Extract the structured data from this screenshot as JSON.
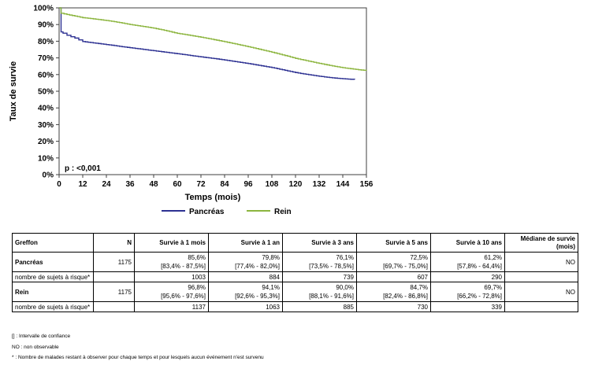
{
  "chart": {
    "ylabel": "Taux de survie",
    "xlabel": "Temps (mois)",
    "p_value": "p : <0,001",
    "ytick_labels": [
      "0%",
      "10%",
      "20%",
      "30%",
      "40%",
      "50%",
      "60%",
      "70%",
      "80%",
      "90%",
      "100%"
    ],
    "xtick_values": [
      0,
      12,
      24,
      36,
      48,
      60,
      72,
      84,
      96,
      108,
      120,
      132,
      144,
      156
    ],
    "legend": {
      "pancreas_label": "Pancréas",
      "rein_label": "Rein"
    },
    "axis_color": "#3f3f3f"
  },
  "chart_data": {
    "type": "line",
    "title": "",
    "xlabel": "Temps (mois)",
    "ylabel": "Taux de survie",
    "xlim": [
      0,
      156
    ],
    "ylim": [
      0,
      100
    ],
    "grid": false,
    "legend_position": "bottom",
    "annotation": "p : <0,001",
    "series": [
      {
        "name": "Pancréas",
        "color": "#2d3192",
        "style": "km-step",
        "points": [
          [
            0,
            100
          ],
          [
            1,
            85.6
          ],
          [
            2,
            84.8
          ],
          [
            4,
            83.6
          ],
          [
            6,
            82.7
          ],
          [
            8,
            81.9
          ],
          [
            10,
            80.8
          ],
          [
            12,
            79.8
          ],
          [
            16,
            79.2
          ],
          [
            20,
            78.6
          ],
          [
            24,
            78.0
          ],
          [
            28,
            77.4
          ],
          [
            32,
            76.7
          ],
          [
            36,
            76.1
          ],
          [
            40,
            75.5
          ],
          [
            44,
            74.9
          ],
          [
            48,
            74.3
          ],
          [
            52,
            73.7
          ],
          [
            56,
            73.1
          ],
          [
            60,
            72.5
          ],
          [
            64,
            71.9
          ],
          [
            68,
            71.2
          ],
          [
            72,
            70.6
          ],
          [
            76,
            70.0
          ],
          [
            80,
            69.4
          ],
          [
            84,
            68.7
          ],
          [
            88,
            68.0
          ],
          [
            92,
            67.3
          ],
          [
            96,
            66.6
          ],
          [
            100,
            65.8
          ],
          [
            104,
            65.0
          ],
          [
            108,
            64.2
          ],
          [
            112,
            63.2
          ],
          [
            116,
            62.2
          ],
          [
            120,
            61.2
          ],
          [
            124,
            60.4
          ],
          [
            128,
            59.7
          ],
          [
            132,
            59.0
          ],
          [
            136,
            58.4
          ],
          [
            140,
            57.9
          ],
          [
            144,
            57.5
          ],
          [
            148,
            57.2
          ],
          [
            150,
            57.0
          ]
        ]
      },
      {
        "name": "Rein",
        "color": "#8cb53f",
        "style": "km-step",
        "points": [
          [
            0,
            100
          ],
          [
            1,
            96.8
          ],
          [
            4,
            96.0
          ],
          [
            8,
            95.1
          ],
          [
            12,
            94.1
          ],
          [
            16,
            93.6
          ],
          [
            20,
            93.0
          ],
          [
            24,
            92.4
          ],
          [
            28,
            91.7
          ],
          [
            32,
            90.9
          ],
          [
            36,
            90.0
          ],
          [
            40,
            89.3
          ],
          [
            44,
            88.6
          ],
          [
            48,
            87.8
          ],
          [
            52,
            86.9
          ],
          [
            56,
            85.8
          ],
          [
            60,
            84.7
          ],
          [
            64,
            84.0
          ],
          [
            68,
            83.2
          ],
          [
            72,
            82.4
          ],
          [
            76,
            81.5
          ],
          [
            80,
            80.6
          ],
          [
            84,
            79.7
          ],
          [
            88,
            78.7
          ],
          [
            92,
            77.7
          ],
          [
            96,
            76.7
          ],
          [
            100,
            75.6
          ],
          [
            104,
            74.5
          ],
          [
            108,
            73.4
          ],
          [
            112,
            72.2
          ],
          [
            116,
            71.0
          ],
          [
            120,
            69.7
          ],
          [
            124,
            68.7
          ],
          [
            128,
            67.7
          ],
          [
            132,
            66.7
          ],
          [
            136,
            65.8
          ],
          [
            140,
            64.9
          ],
          [
            144,
            64.1
          ],
          [
            148,
            63.5
          ],
          [
            152,
            62.9
          ],
          [
            156,
            62.4
          ]
        ]
      }
    ]
  },
  "table": {
    "headers": [
      "Greffon",
      "N",
      "Survie à 1 mois",
      "Survie à 1 an",
      "Survie à 3 ans",
      "Survie à 5 ans",
      "Survie à 10 ans",
      "Médiane de survie (mois)"
    ],
    "rows": [
      {
        "label": "Pancréas",
        "n": "1175",
        "values": [
          "85,6%",
          "79,8%",
          "76,1%",
          "72,5%",
          "61,2%"
        ],
        "ci": [
          "[83,4% - 87,5%]",
          "[77,4% - 82,0%]",
          "[73,5% - 78,5%]",
          "[69,7% - 75,0%]",
          "[57,8% - 64,4%]"
        ],
        "mediane": "NO",
        "risk_label": "nombre de sujets à risque*",
        "risk": [
          "1003",
          "884",
          "739",
          "607",
          "290"
        ]
      },
      {
        "label": "Rein",
        "n": "1175",
        "values": [
          "96,8%",
          "94,1%",
          "90,0%",
          "84,7%",
          "69,7%"
        ],
        "ci": [
          "[95,6% - 97,6%]",
          "[92,6% - 95,3%]",
          "[88,1% - 91,6%]",
          "[82,4% - 86,8%]",
          "[66,2% - 72,8%]"
        ],
        "mediane": "NO",
        "risk_label": "nombre de sujets à risque*",
        "risk": [
          "1137",
          "1063",
          "885",
          "730",
          "339"
        ]
      }
    ]
  },
  "footnotes": [
    "[] : Intervalle de confiance",
    "NO : non observable",
    "* : Nombre de malades restant à observer pour chaque temps et pour lesquels aucun événement n'est survenu"
  ]
}
